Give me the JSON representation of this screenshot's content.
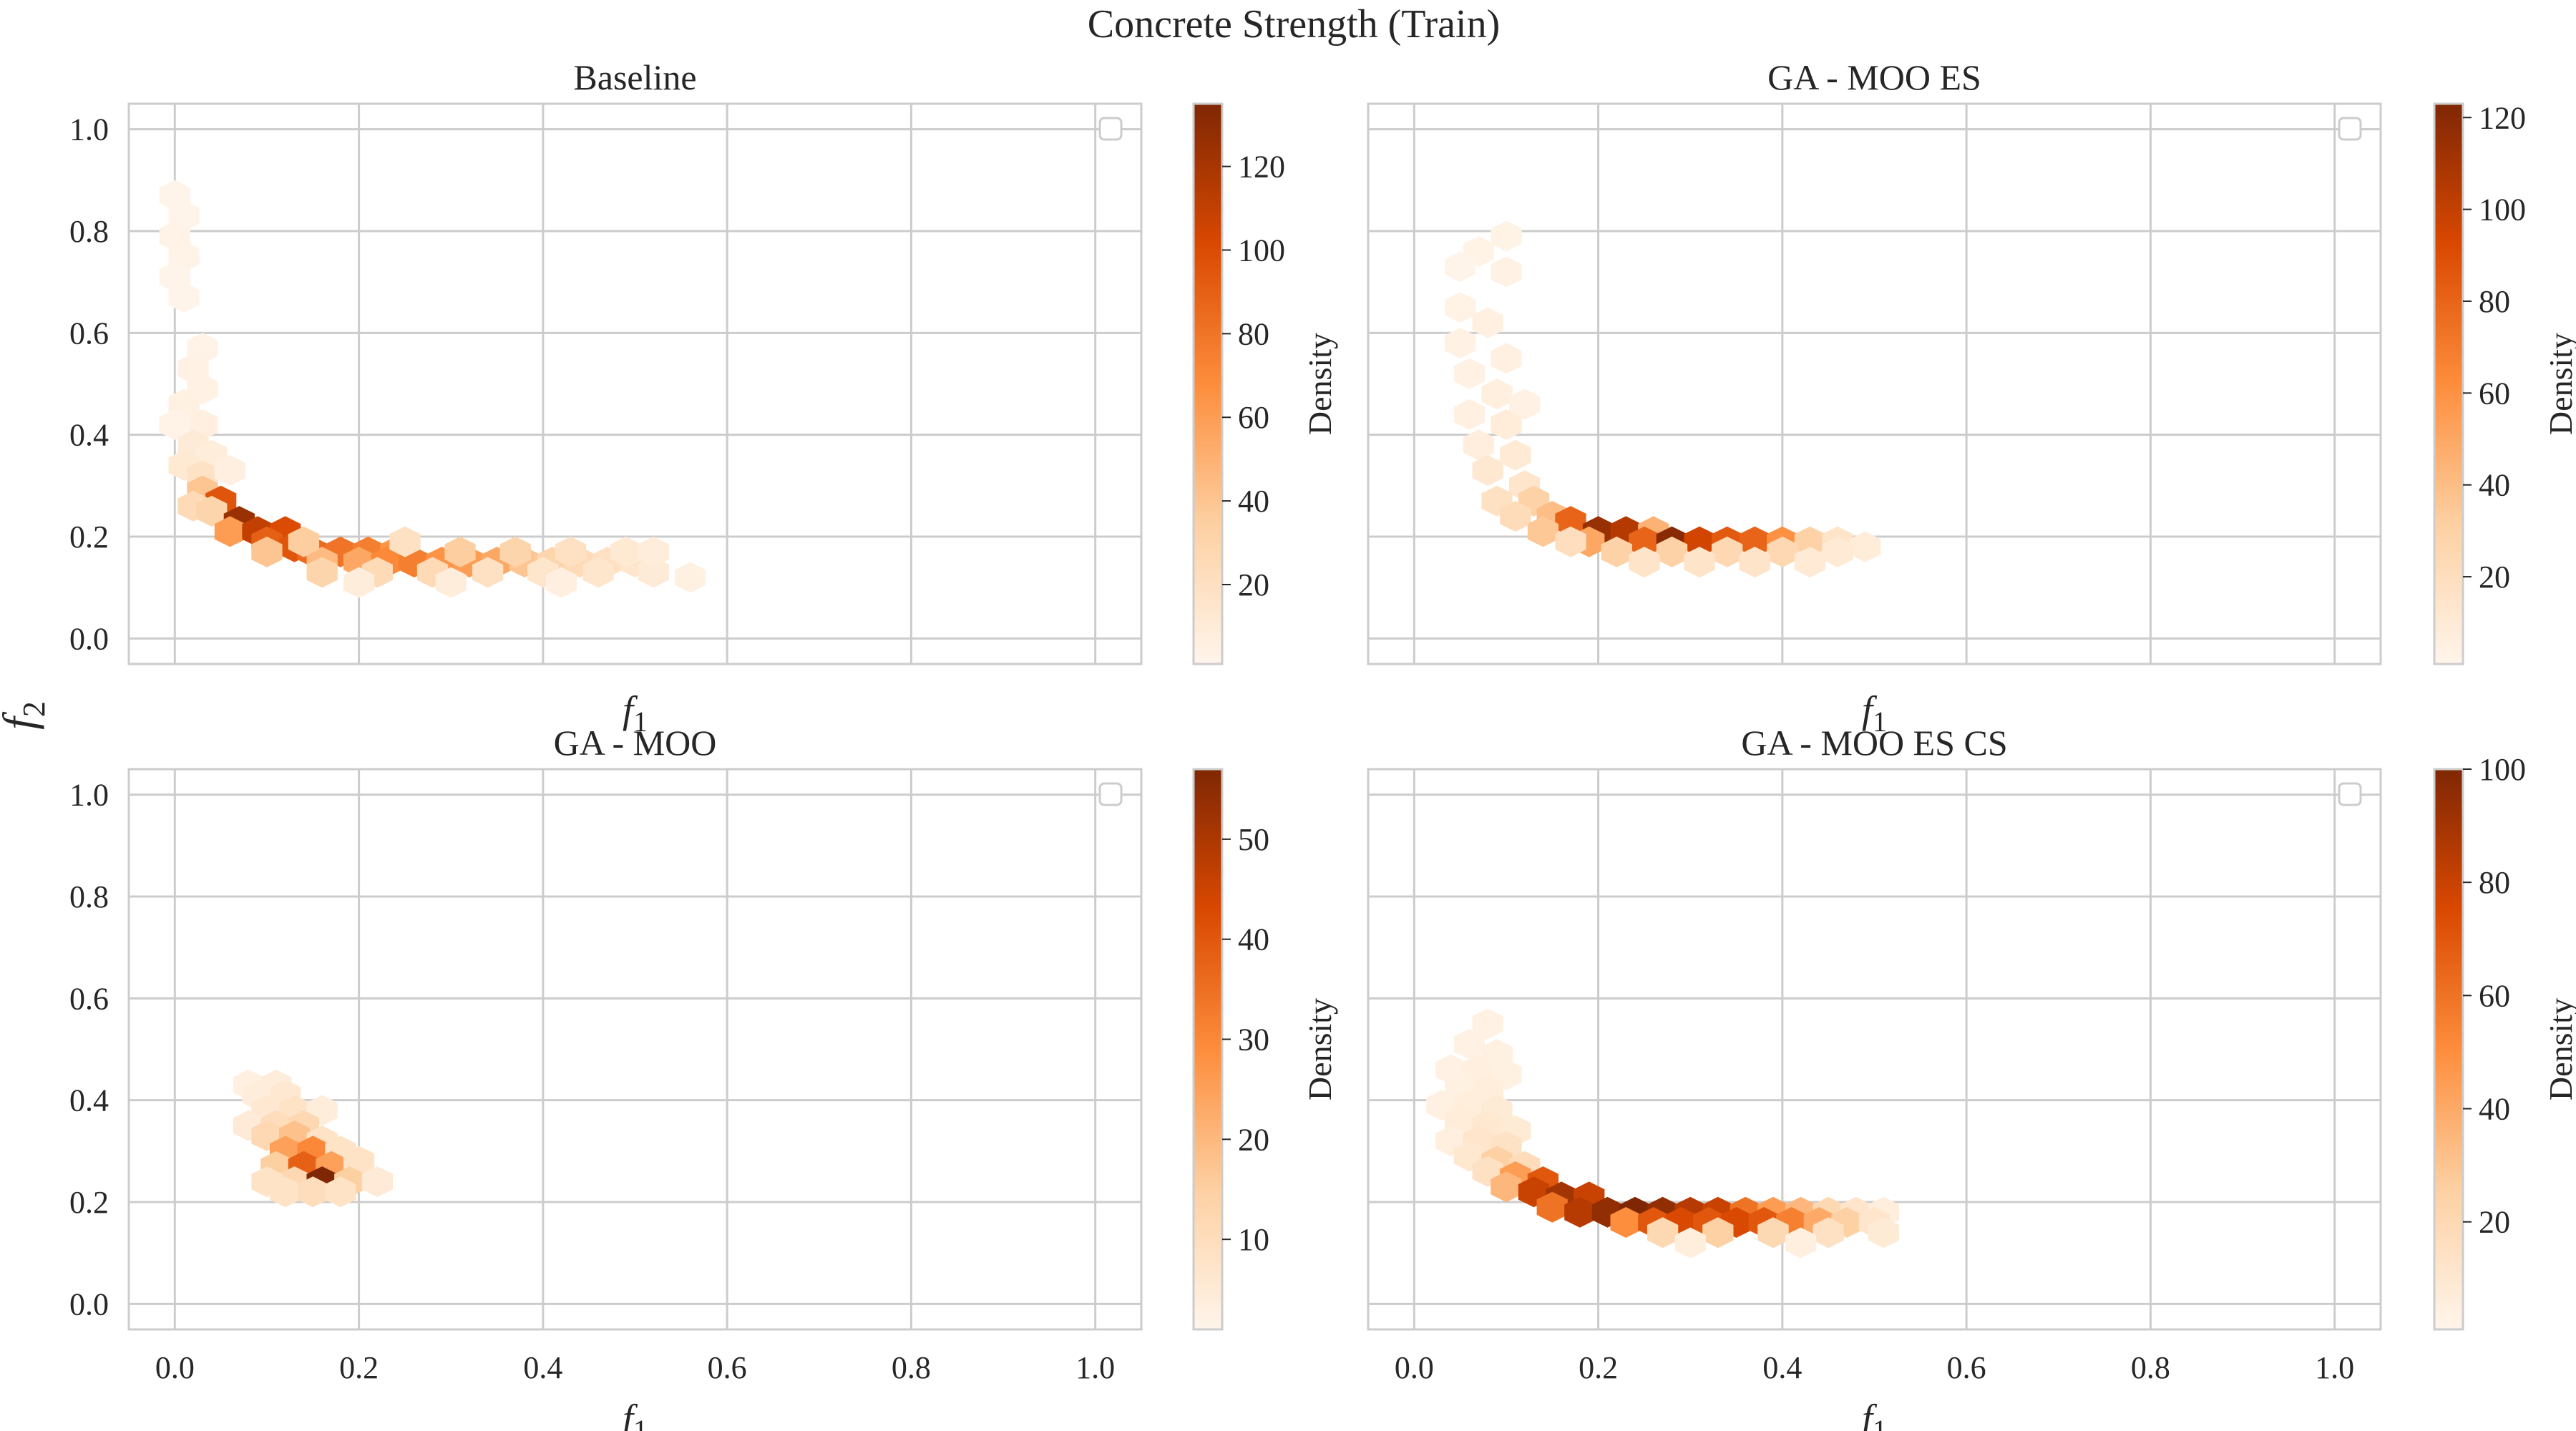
{
  "figure": {
    "title": "Concrete Strength (Train)",
    "ylabel_main": "f",
    "ylabel_sub": "2",
    "xlabel_main": "f",
    "xlabel_sub": "1"
  },
  "chart_data": [
    {
      "type": "heatmap",
      "kind": "hexbin",
      "title": "Baseline",
      "xlabel": "f1",
      "ylabel": "f2",
      "xlim": [
        -0.05,
        1.05
      ],
      "ylim": [
        -0.05,
        1.05
      ],
      "xticks": [],
      "yticks": [
        0.0,
        0.2,
        0.4,
        0.6,
        0.8,
        1.0
      ],
      "colorbar": {
        "label": "Density",
        "range": [
          1,
          135
        ],
        "ticks": [
          20,
          40,
          60,
          80,
          100,
          120
        ]
      },
      "legend": "top-right (empty)",
      "points": [
        [
          0.0,
          0.87,
          2
        ],
        [
          0.01,
          0.83,
          2
        ],
        [
          0.0,
          0.79,
          3
        ],
        [
          0.01,
          0.75,
          3
        ],
        [
          0.0,
          0.71,
          2
        ],
        [
          0.01,
          0.67,
          2
        ],
        [
          0.03,
          0.57,
          3
        ],
        [
          0.02,
          0.53,
          4
        ],
        [
          0.03,
          0.49,
          4
        ],
        [
          0.01,
          0.46,
          5
        ],
        [
          0.03,
          0.42,
          6
        ],
        [
          0.0,
          0.42,
          3
        ],
        [
          0.02,
          0.38,
          10
        ],
        [
          0.04,
          0.36,
          8
        ],
        [
          0.01,
          0.34,
          12
        ],
        [
          0.03,
          0.32,
          18
        ],
        [
          0.06,
          0.33,
          6
        ],
        [
          0.03,
          0.29,
          40
        ],
        [
          0.05,
          0.27,
          95
        ],
        [
          0.02,
          0.26,
          25
        ],
        [
          0.04,
          0.25,
          30
        ],
        [
          0.07,
          0.23,
          125
        ],
        [
          0.06,
          0.21,
          60
        ],
        [
          0.09,
          0.21,
          110
        ],
        [
          0.12,
          0.21,
          100
        ],
        [
          0.1,
          0.19,
          90
        ],
        [
          0.13,
          0.18,
          95
        ],
        [
          0.15,
          0.17,
          85
        ],
        [
          0.18,
          0.17,
          80
        ],
        [
          0.21,
          0.17,
          75
        ],
        [
          0.24,
          0.17,
          65
        ],
        [
          0.2,
          0.15,
          55
        ],
        [
          0.23,
          0.15,
          70
        ],
        [
          0.26,
          0.15,
          75
        ],
        [
          0.29,
          0.15,
          65
        ],
        [
          0.32,
          0.15,
          60
        ],
        [
          0.35,
          0.15,
          55
        ],
        [
          0.38,
          0.15,
          40
        ],
        [
          0.41,
          0.15,
          30
        ],
        [
          0.44,
          0.15,
          25
        ],
        [
          0.47,
          0.15,
          20
        ],
        [
          0.5,
          0.15,
          15
        ],
        [
          0.1,
          0.17,
          40
        ],
        [
          0.16,
          0.15,
          45
        ],
        [
          0.16,
          0.13,
          30
        ],
        [
          0.22,
          0.13,
          25
        ],
        [
          0.28,
          0.13,
          25
        ],
        [
          0.34,
          0.13,
          20
        ],
        [
          0.4,
          0.13,
          15
        ],
        [
          0.46,
          0.13,
          15
        ],
        [
          0.52,
          0.13,
          10
        ],
        [
          0.56,
          0.12,
          5
        ],
        [
          0.3,
          0.11,
          8
        ],
        [
          0.42,
          0.11,
          6
        ],
        [
          0.2,
          0.11,
          8
        ],
        [
          0.14,
          0.19,
          35
        ],
        [
          0.25,
          0.19,
          20
        ],
        [
          0.31,
          0.17,
          35
        ],
        [
          0.37,
          0.17,
          30
        ],
        [
          0.43,
          0.17,
          20
        ],
        [
          0.49,
          0.17,
          12
        ],
        [
          0.52,
          0.17,
          8
        ]
      ]
    },
    {
      "type": "heatmap",
      "kind": "hexbin",
      "title": "GA - MOO ES",
      "xlabel": "f1",
      "ylabel": "f2",
      "xlim": [
        -0.05,
        1.05
      ],
      "ylim": [
        -0.05,
        1.05
      ],
      "xticks": [],
      "yticks": [],
      "colorbar": {
        "label": "Density",
        "range": [
          1,
          123
        ],
        "ticks": [
          20,
          40,
          60,
          80,
          100,
          120
        ]
      },
      "legend": "top-right (empty)",
      "points": [
        [
          0.1,
          0.79,
          3
        ],
        [
          0.07,
          0.76,
          3
        ],
        [
          0.05,
          0.73,
          2
        ],
        [
          0.1,
          0.72,
          4
        ],
        [
          0.05,
          0.65,
          3
        ],
        [
          0.08,
          0.62,
          5
        ],
        [
          0.05,
          0.58,
          4
        ],
        [
          0.1,
          0.55,
          5
        ],
        [
          0.06,
          0.52,
          4
        ],
        [
          0.09,
          0.48,
          6
        ],
        [
          0.12,
          0.46,
          4
        ],
        [
          0.06,
          0.44,
          5
        ],
        [
          0.1,
          0.42,
          8
        ],
        [
          0.07,
          0.38,
          7
        ],
        [
          0.11,
          0.36,
          10
        ],
        [
          0.08,
          0.33,
          12
        ],
        [
          0.12,
          0.3,
          14
        ],
        [
          0.09,
          0.27,
          18
        ],
        [
          0.13,
          0.27,
          30
        ],
        [
          0.15,
          0.24,
          40
        ],
        [
          0.11,
          0.24,
          22
        ],
        [
          0.17,
          0.23,
          80
        ],
        [
          0.14,
          0.21,
          35
        ],
        [
          0.2,
          0.21,
          115
        ],
        [
          0.23,
          0.21,
          105
        ],
        [
          0.26,
          0.21,
          45
        ],
        [
          0.19,
          0.19,
          50
        ],
        [
          0.25,
          0.19,
          80
        ],
        [
          0.28,
          0.19,
          120
        ],
        [
          0.31,
          0.19,
          95
        ],
        [
          0.34,
          0.19,
          85
        ],
        [
          0.37,
          0.19,
          80
        ],
        [
          0.4,
          0.19,
          60
        ],
        [
          0.43,
          0.19,
          30
        ],
        [
          0.46,
          0.19,
          15
        ],
        [
          0.49,
          0.18,
          8
        ],
        [
          0.22,
          0.17,
          30
        ],
        [
          0.28,
          0.17,
          30
        ],
        [
          0.34,
          0.17,
          25
        ],
        [
          0.4,
          0.17,
          25
        ],
        [
          0.46,
          0.17,
          10
        ],
        [
          0.25,
          0.15,
          15
        ],
        [
          0.31,
          0.15,
          15
        ],
        [
          0.37,
          0.15,
          15
        ],
        [
          0.43,
          0.15,
          10
        ],
        [
          0.17,
          0.19,
          20
        ]
      ]
    },
    {
      "type": "heatmap",
      "kind": "hexbin",
      "title": "GA - MOO",
      "xlabel": "f1",
      "ylabel": "f2",
      "xlim": [
        -0.05,
        1.05
      ],
      "ylim": [
        -0.05,
        1.05
      ],
      "xticks": [
        0.0,
        0.2,
        0.4,
        0.6,
        0.8,
        1.0
      ],
      "yticks": [
        0.0,
        0.2,
        0.4,
        0.6,
        0.8,
        1.0
      ],
      "colorbar": {
        "label": "Density",
        "range": [
          1,
          57
        ],
        "ticks": [
          10,
          20,
          30,
          40,
          50
        ]
      },
      "legend": "top-right (empty)",
      "points": [
        [
          0.08,
          0.43,
          3
        ],
        [
          0.11,
          0.43,
          4
        ],
        [
          0.09,
          0.41,
          4
        ],
        [
          0.12,
          0.41,
          6
        ],
        [
          0.1,
          0.38,
          6
        ],
        [
          0.13,
          0.38,
          8
        ],
        [
          0.16,
          0.38,
          4
        ],
        [
          0.08,
          0.35,
          5
        ],
        [
          0.11,
          0.35,
          10
        ],
        [
          0.14,
          0.35,
          12
        ],
        [
          0.1,
          0.33,
          12
        ],
        [
          0.13,
          0.33,
          18
        ],
        [
          0.16,
          0.32,
          8
        ],
        [
          0.12,
          0.3,
          25
        ],
        [
          0.15,
          0.3,
          30
        ],
        [
          0.18,
          0.3,
          8
        ],
        [
          0.11,
          0.27,
          15
        ],
        [
          0.14,
          0.27,
          38
        ],
        [
          0.17,
          0.27,
          25
        ],
        [
          0.2,
          0.28,
          8
        ],
        [
          0.13,
          0.24,
          12
        ],
        [
          0.16,
          0.24,
          57
        ],
        [
          0.19,
          0.24,
          15
        ],
        [
          0.1,
          0.24,
          8
        ],
        [
          0.22,
          0.24,
          5
        ],
        [
          0.12,
          0.22,
          8
        ],
        [
          0.15,
          0.22,
          10
        ],
        [
          0.18,
          0.22,
          8
        ]
      ]
    },
    {
      "type": "heatmap",
      "kind": "hexbin",
      "title": "GA - MOO ES CS",
      "xlabel": "f1",
      "ylabel": "f2",
      "xlim": [
        -0.05,
        1.05
      ],
      "ylim": [
        -0.05,
        1.05
      ],
      "xticks": [
        0.0,
        0.2,
        0.4,
        0.6,
        0.8,
        1.0
      ],
      "yticks": [],
      "colorbar": {
        "label": "Density",
        "range": [
          1,
          100
        ],
        "ticks": [
          20,
          40,
          60,
          80,
          100
        ]
      },
      "legend": "top-right (empty)",
      "points": [
        [
          0.08,
          0.55,
          3
        ],
        [
          0.06,
          0.51,
          3
        ],
        [
          0.09,
          0.49,
          4
        ],
        [
          0.04,
          0.46,
          3
        ],
        [
          0.07,
          0.46,
          5
        ],
        [
          0.1,
          0.45,
          4
        ],
        [
          0.05,
          0.42,
          4
        ],
        [
          0.08,
          0.42,
          6
        ],
        [
          0.03,
          0.39,
          4
        ],
        [
          0.06,
          0.39,
          6
        ],
        [
          0.09,
          0.38,
          8
        ],
        [
          0.05,
          0.36,
          7
        ],
        [
          0.08,
          0.35,
          10
        ],
        [
          0.11,
          0.34,
          8
        ],
        [
          0.04,
          0.32,
          5
        ],
        [
          0.07,
          0.32,
          12
        ],
        [
          0.1,
          0.31,
          14
        ],
        [
          0.06,
          0.29,
          10
        ],
        [
          0.09,
          0.28,
          25
        ],
        [
          0.12,
          0.27,
          18
        ],
        [
          0.08,
          0.26,
          15
        ],
        [
          0.11,
          0.25,
          45
        ],
        [
          0.14,
          0.24,
          70
        ],
        [
          0.1,
          0.23,
          35
        ],
        [
          0.13,
          0.22,
          80
        ],
        [
          0.16,
          0.21,
          90
        ],
        [
          0.19,
          0.21,
          80
        ],
        [
          0.15,
          0.19,
          60
        ],
        [
          0.18,
          0.18,
          85
        ],
        [
          0.21,
          0.18,
          95
        ],
        [
          0.24,
          0.18,
          100
        ],
        [
          0.27,
          0.18,
          95
        ],
        [
          0.3,
          0.18,
          85
        ],
        [
          0.33,
          0.18,
          80
        ],
        [
          0.36,
          0.18,
          60
        ],
        [
          0.39,
          0.18,
          45
        ],
        [
          0.42,
          0.18,
          35
        ],
        [
          0.45,
          0.18,
          20
        ],
        [
          0.48,
          0.18,
          12
        ],
        [
          0.51,
          0.18,
          6
        ],
        [
          0.23,
          0.16,
          50
        ],
        [
          0.26,
          0.16,
          70
        ],
        [
          0.29,
          0.16,
          75
        ],
        [
          0.32,
          0.16,
          70
        ],
        [
          0.35,
          0.16,
          75
        ],
        [
          0.38,
          0.16,
          70
        ],
        [
          0.41,
          0.16,
          55
        ],
        [
          0.44,
          0.16,
          40
        ],
        [
          0.47,
          0.16,
          25
        ],
        [
          0.5,
          0.16,
          12
        ],
        [
          0.27,
          0.14,
          20
        ],
        [
          0.33,
          0.14,
          25
        ],
        [
          0.39,
          0.14,
          20
        ],
        [
          0.45,
          0.14,
          15
        ],
        [
          0.51,
          0.14,
          8
        ],
        [
          0.3,
          0.12,
          6
        ],
        [
          0.42,
          0.12,
          5
        ]
      ]
    }
  ]
}
